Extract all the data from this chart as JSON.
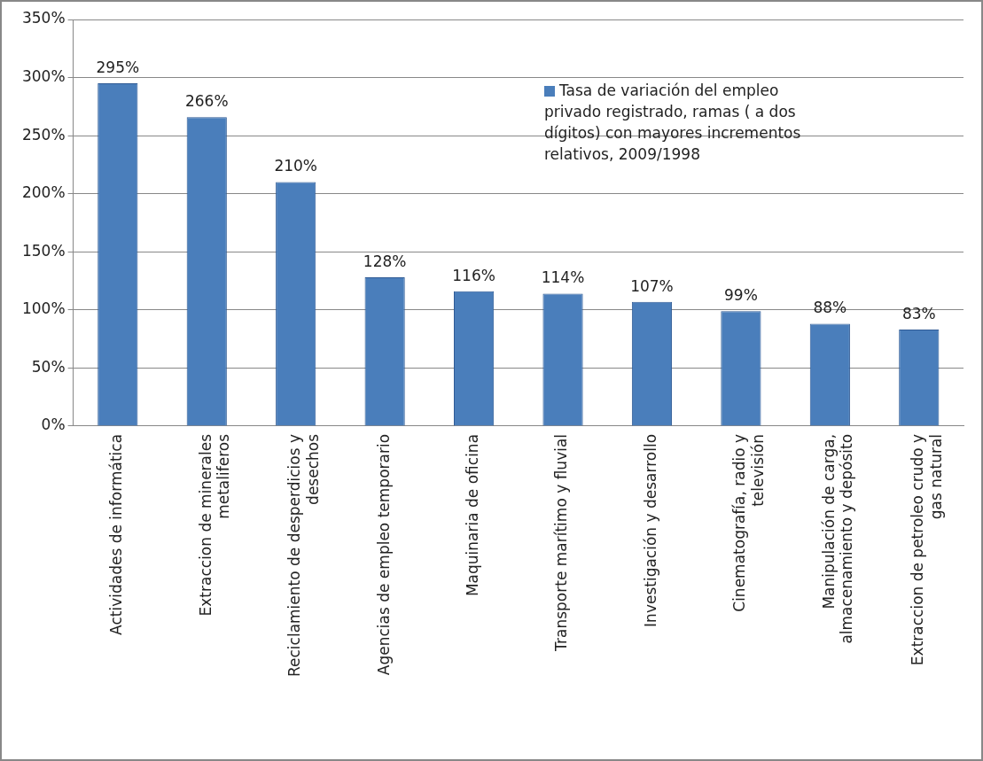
{
  "chart_data": {
    "type": "bar",
    "categories": [
      "Actividades de informática",
      "Extraccion de minerales metaliferos",
      "Reciclamiento de desperdicios y desechos",
      "Agencias de empleo temporario",
      "Maquinaria de oficina",
      "Transporte marítimo y fluvial",
      "Investigación y desarrollo",
      "Cinematografía, radio y televisión",
      "Manipulación de carga, almacenamiento y depósito",
      "Extraccion de petroleo crudo y gas natural"
    ],
    "series": [
      {
        "name": "Tasa de variación del empleo privado registrado,  ramas ( a dos dígitos) con mayores incrementos relativos, 2009/1998",
        "color": "#4a7ebb",
        "values": [
          295,
          266,
          210,
          128,
          116,
          114,
          107,
          99,
          88,
          83
        ],
        "value_labels": [
          "295%",
          "266%",
          "210%",
          "128%",
          "116%",
          "114%",
          "107%",
          "99%",
          "88%",
          "83%"
        ]
      }
    ],
    "ylim": [
      0,
      350
    ],
    "yticks": [
      {
        "value": 0,
        "label": "0%"
      },
      {
        "value": 50,
        "label": "50%"
      },
      {
        "value": 100,
        "label": "100%"
      },
      {
        "value": 150,
        "label": "150%"
      },
      {
        "value": 200,
        "label": "200%"
      },
      {
        "value": 250,
        "label": "250%"
      },
      {
        "value": 300,
        "label": "300%"
      },
      {
        "value": 350,
        "label": "350%"
      }
    ],
    "grid": "y",
    "legend": "top right"
  }
}
